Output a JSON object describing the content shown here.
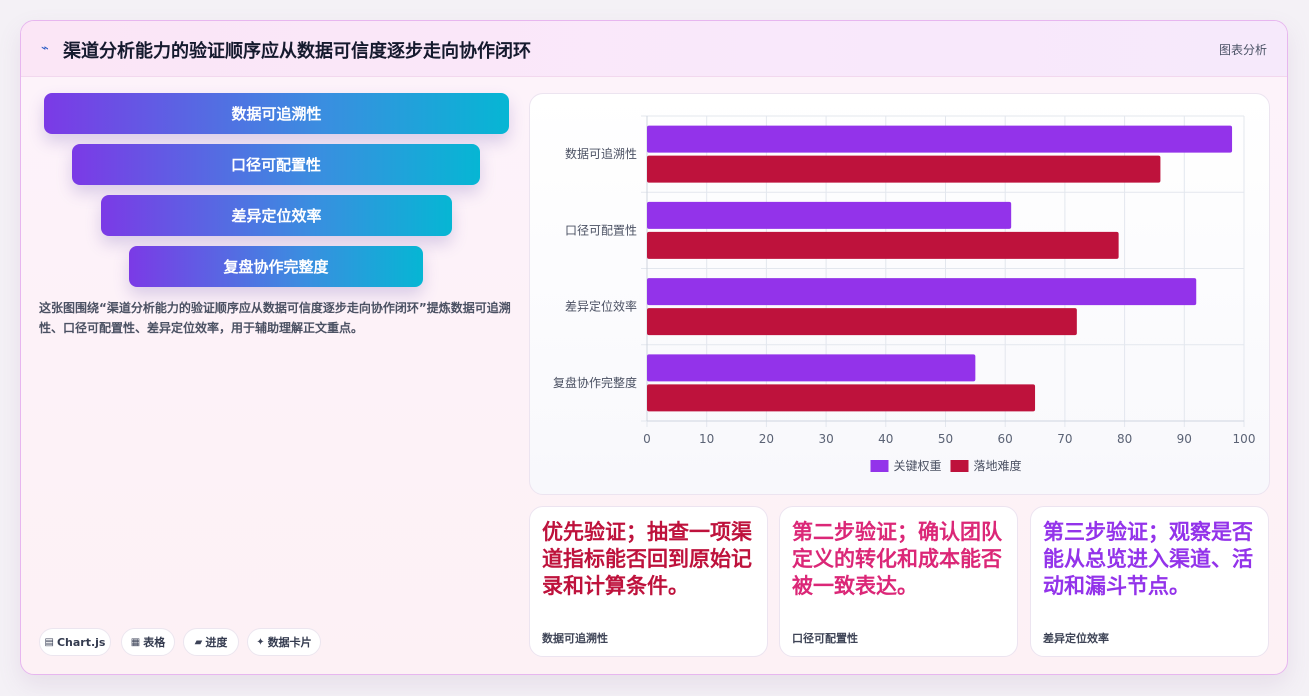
{
  "header": {
    "icon": "sparkle-icon",
    "title": "渠道分析能力的验证顺序应从数据可信度逐步走向协作闭环",
    "tag": "图表分析"
  },
  "funnel": [
    "数据可追溯性",
    "口径可配置性",
    "差异定位效率",
    "复盘协作完整度"
  ],
  "description": "这张图围绕“渠道分析能力的验证顺序应从数据可信度逐步走向协作闭环”提炼数据可追溯性、口径可配置性、差异定位效率，用于辅助理解正文重点。",
  "pills": [
    {
      "icon": "chart-icon",
      "glyph": "▤",
      "label": "Chart.js"
    },
    {
      "icon": "table-icon",
      "glyph": "▦",
      "label": "表格"
    },
    {
      "icon": "progress-icon",
      "glyph": "▰",
      "label": "进度"
    },
    {
      "icon": "card-icon",
      "glyph": "✦",
      "label": "数据卡片"
    }
  ],
  "chart_data": {
    "type": "bar",
    "orientation": "horizontal",
    "categories": [
      "数据可追溯性",
      "口径可配置性",
      "差异定位效率",
      "复盘协作完整度"
    ],
    "series": [
      {
        "name": "关键权重",
        "color": "#9333ea",
        "values": [
          98,
          61,
          92,
          55
        ]
      },
      {
        "name": "落地难度",
        "color": "#be123c",
        "values": [
          86,
          79,
          72,
          65
        ]
      }
    ],
    "xlim": [
      0,
      100
    ],
    "xticks": [
      "0",
      "10",
      "20",
      "30",
      "40",
      "50",
      "60",
      "70",
      "80",
      "90",
      "100"
    ],
    "grid": true,
    "legend": "bottom"
  },
  "cards": [
    {
      "text": "优先验证；抽查一项渠道指标能否回到原始记录和计算条件。",
      "label": "数据可追溯性",
      "color": "#be123c"
    },
    {
      "text": "第二步验证；确认团队定义的转化和成本能否被一致表达。",
      "label": "口径可配置性",
      "color": "#db2777"
    },
    {
      "text": "第三步验证；观察是否能从总览进入渠道、活动和漏斗节点。",
      "label": "差异定位效率",
      "color": "#9333ea"
    }
  ]
}
